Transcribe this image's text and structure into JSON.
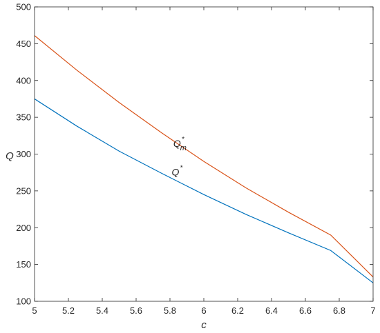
{
  "chart_data": {
    "type": "line",
    "title": "",
    "xlabel": "c",
    "ylabel": "Q",
    "xlim": [
      5,
      7
    ],
    "ylim": [
      100,
      500
    ],
    "xticks": [
      "5",
      "5.2",
      "5.4",
      "5.6",
      "5.8",
      "6",
      "6.2",
      "6.4",
      "6.6",
      "6.8",
      "7"
    ],
    "yticks": [
      "100",
      "150",
      "200",
      "250",
      "300",
      "350",
      "400",
      "450",
      "500"
    ],
    "grid": false,
    "legend": "none",
    "series": [
      {
        "color": "#d95319",
        "x": [
          5.0,
          5.25,
          5.5,
          5.75,
          6.0,
          6.25,
          6.5,
          6.75,
          7.0
        ],
        "y": [
          461,
          414,
          370,
          329,
          290,
          254,
          221,
          190,
          133
        ],
        "annotation": {
          "base": "Q",
          "sub": "m",
          "sup": "*",
          "x": 5.82,
          "y": 310
        }
      },
      {
        "color": "#0072bd",
        "x": [
          5.0,
          5.25,
          5.5,
          5.75,
          6.0,
          6.25,
          6.5,
          6.75,
          7.0
        ],
        "y": [
          375,
          338,
          304,
          274,
          245,
          218,
          193,
          169,
          125
        ],
        "annotation": {
          "base": "Q",
          "sub": "",
          "sup": "*",
          "x": 5.81,
          "y": 271
        }
      }
    ]
  }
}
